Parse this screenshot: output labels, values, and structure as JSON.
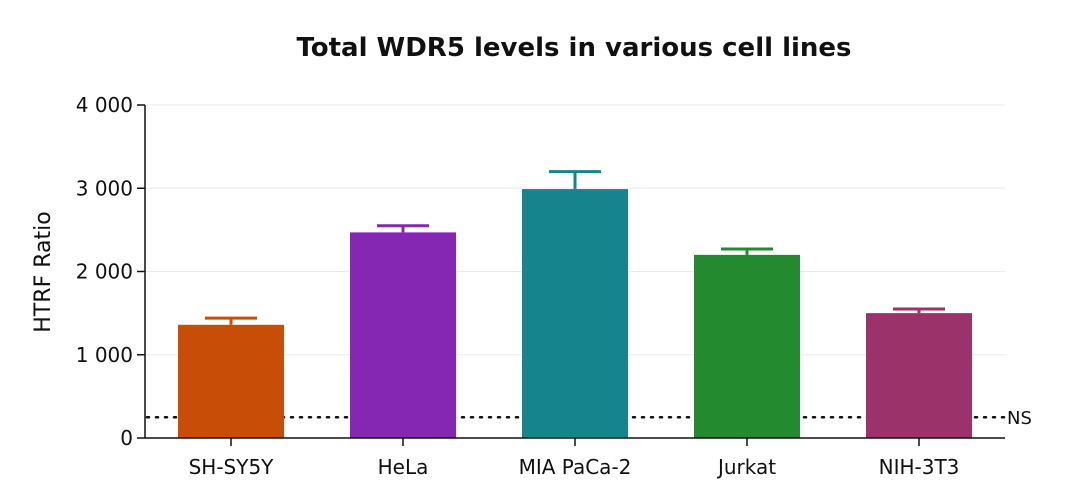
{
  "chart_data": {
    "type": "bar",
    "title": "Total WDR5 levels in various cell lines",
    "xlabel": "",
    "ylabel": "HTRF Ratio",
    "ylim": [
      0,
      4000
    ],
    "yticks": [
      0,
      1000,
      2000,
      3000,
      4000
    ],
    "ytick_labels": [
      "0",
      "1 000",
      "2 000",
      "3 000",
      "4 000"
    ],
    "grid": "horizontal",
    "categories": [
      "SH-SY5Y",
      "HeLa",
      "MIA PaCa-2",
      "Jurkat",
      "NIH-3T3"
    ],
    "values": [
      1360,
      2470,
      2990,
      2200,
      1500
    ],
    "errors": [
      80,
      80,
      210,
      70,
      50
    ],
    "colors": [
      "#C84E07",
      "#8627B3",
      "#16848C",
      "#238A30",
      "#9C326A"
    ],
    "reference_line": {
      "value": 250,
      "label": "NS",
      "style": "dotted"
    }
  }
}
